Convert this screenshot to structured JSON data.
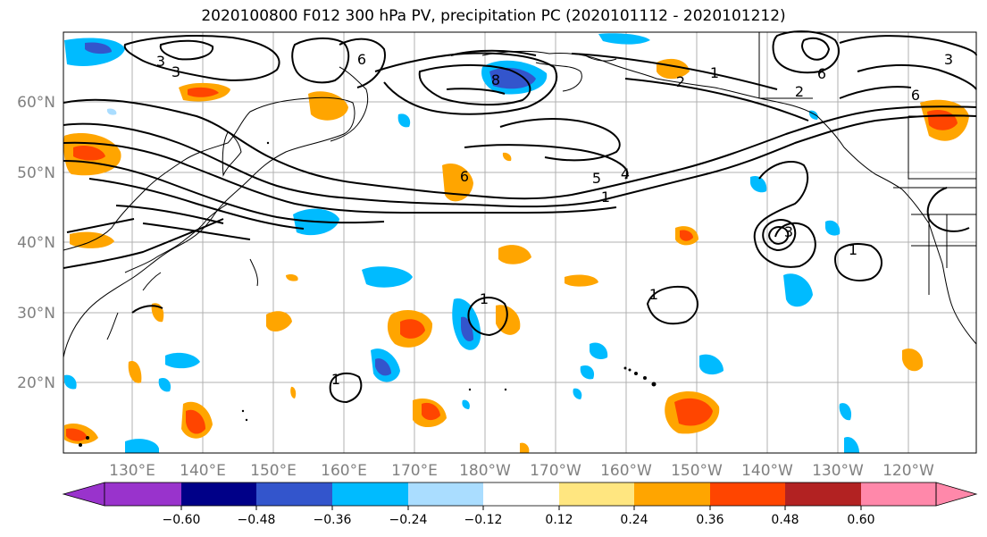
{
  "title": "2020100800 F012 300 hPa PV, precipitation PC (2020101112 - 2020101212)",
  "map": {
    "lat_labels": [
      "60°N",
      "50°N",
      "40°N",
      "30°N",
      "20°N"
    ],
    "lon_labels": [
      "130°E",
      "140°E",
      "150°E",
      "160°E",
      "170°E",
      "180°W",
      "170°W",
      "160°W",
      "150°W",
      "140°W",
      "130°W",
      "120°W"
    ],
    "pv_contour_labels": [
      "3",
      "6",
      "8",
      "6",
      "2",
      "1",
      "2",
      "3",
      "6",
      "3",
      "6",
      "5",
      "4",
      "1",
      "3",
      "1",
      "1",
      "1",
      "1"
    ]
  },
  "colorbar": {
    "tick_labels": [
      "−0.60",
      "−0.48",
      "−0.36",
      "−0.24",
      "−0.12",
      "0.12",
      "0.24",
      "0.36",
      "0.48",
      "0.60"
    ],
    "colors": [
      "#9933cc",
      "#000088",
      "#3355cc",
      "#00bbff",
      "#aaddff",
      "#ffffff",
      "#ffe680",
      "#ffa500",
      "#ff4500",
      "#b22222",
      "#ff88aa"
    ]
  }
}
